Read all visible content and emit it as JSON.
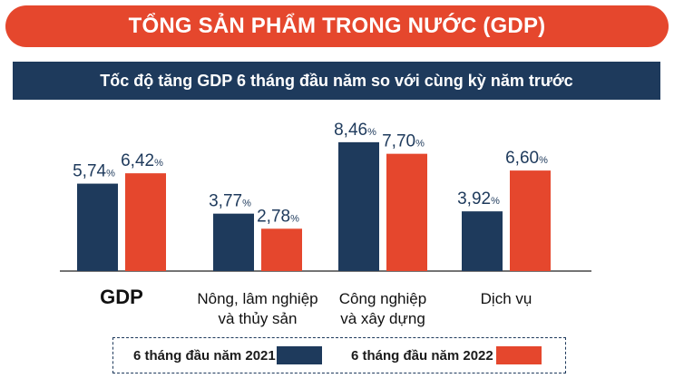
{
  "header": {
    "title": "TỔNG SẢN PHẨM TRONG NƯỚC (GDP)",
    "subtitle": "Tốc độ tăng GDP 6 tháng đầu năm so với cùng kỳ năm trước"
  },
  "colors": {
    "title_bg": "#e5472d",
    "subtitle_bg": "#1e3a5c",
    "series_2021": "#1e3a5c",
    "series_2022": "#e5472d",
    "value_text": "#1e3a5c"
  },
  "chart_data": {
    "type": "bar",
    "title": "Tốc độ tăng GDP 6 tháng đầu năm so với cùng kỳ năm trước",
    "categories": [
      [
        "GDP"
      ],
      [
        "Nông, lâm nghiệp",
        "và thủy sản"
      ],
      [
        "Công nghiệp",
        "và xây dựng"
      ],
      [
        "Dịch vụ"
      ]
    ],
    "series": [
      {
        "name": "6 tháng đầu năm 2021",
        "values": [
          5.74,
          3.77,
          8.46,
          3.92
        ],
        "labels": [
          "5,74",
          "3,77",
          "8,46",
          "3,92"
        ]
      },
      {
        "name": "6 tháng đầu năm 2022",
        "values": [
          6.42,
          2.78,
          7.7,
          6.6
        ],
        "labels": [
          "6,42",
          "2,78",
          "7,70",
          "6,60"
        ]
      }
    ],
    "unit": "%",
    "ylim": [
      0,
      10
    ],
    "grid": false,
    "legend_position": "bottom"
  },
  "legend": {
    "item_2021": "6 tháng đầu năm 2021",
    "item_2022": "6 tháng đầu năm 2022"
  }
}
